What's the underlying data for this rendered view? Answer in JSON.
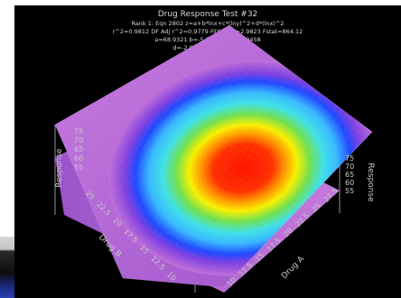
{
  "chart_data": {
    "type": "surface3d",
    "title": "Drug Response Test #32",
    "header_lines": [
      "Rank 1: Eqn 2802  z=a+b*lnx+c*(lny)^2+d*(lnx)^2",
      "r^2=0.9812  DF Adj r^2=0.9779  FitStdErr=2.9823  Fstat=864.12",
      "a=68.9321  b=-5.29841  c=-3.10458",
      "d=-2.84719  e=3.87620"
    ],
    "xlabel": "Drug A",
    "ylabel": "Drug B",
    "zlabel": "Response",
    "x_ticks": [
      "10",
      "12.5",
      "15",
      "17.5",
      "20",
      "22.5",
      "25",
      "27.5"
    ],
    "y_ticks": [
      "10",
      "12.5",
      "15",
      "17.5",
      "20",
      "22.5",
      "25"
    ],
    "z_ticks": [
      "75",
      "70",
      "65",
      "60",
      "55"
    ],
    "right_z_ticks": [
      "75",
      "70",
      "65",
      "60",
      "55"
    ],
    "colors": {
      "peak": "#ff1a00",
      "ring_orange": "#ff8a00",
      "ring_yellow": "#f8f000",
      "ring_green": "#60e050",
      "ring_cyan": "#40e0f0",
      "ring_blue": "#2050ff",
      "floor": "#c870d8",
      "background": "#000000"
    }
  }
}
